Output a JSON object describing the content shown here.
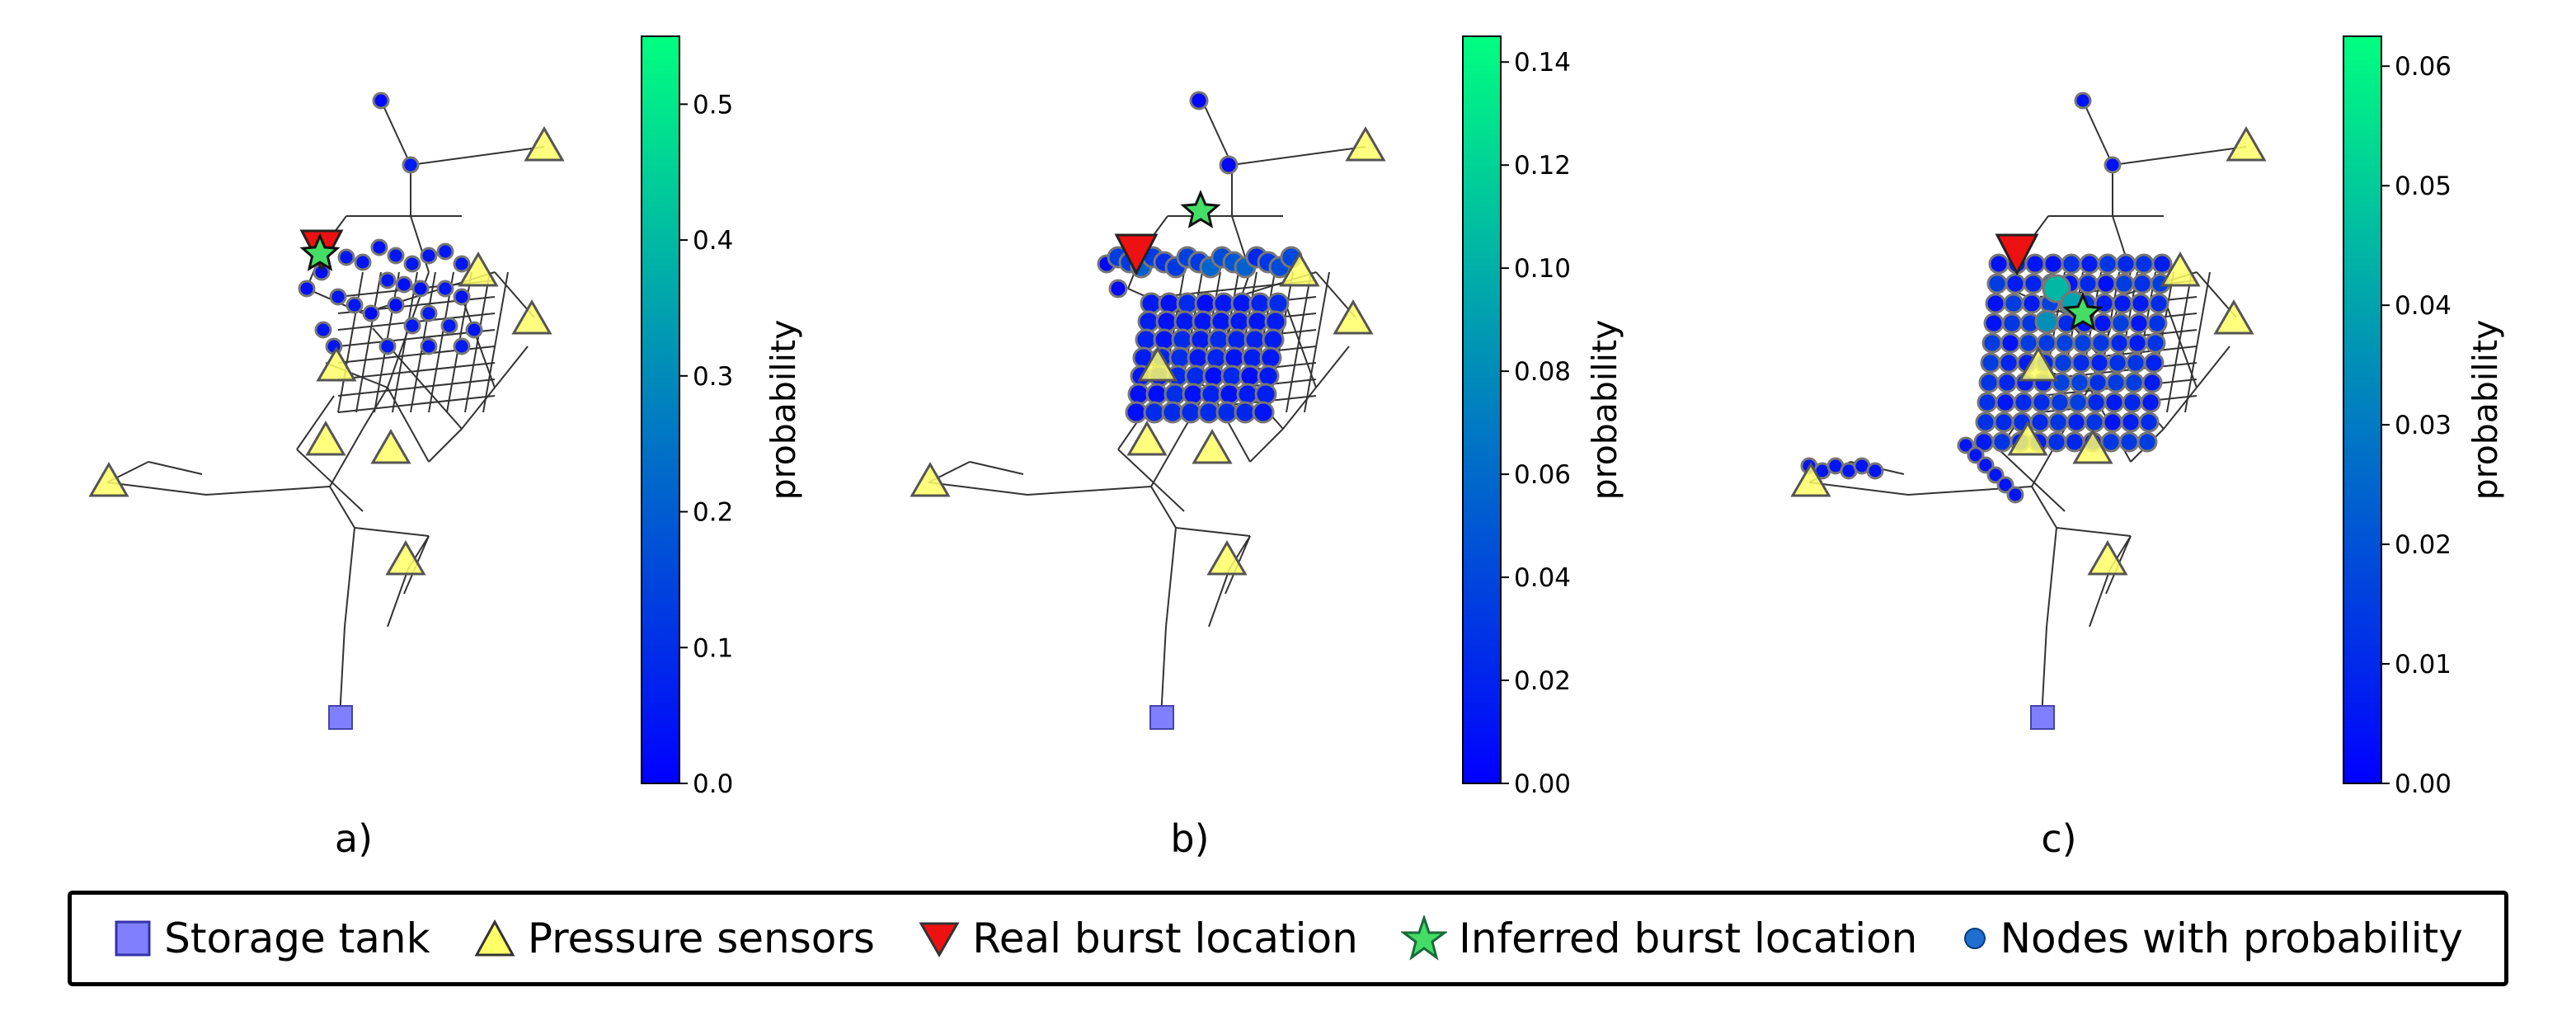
{
  "panels": [
    {
      "id": "a",
      "caption": "a)",
      "colorbar": {
        "label": "probability",
        "min": 0.0,
        "max": 0.55,
        "ticks": [
          "0.0",
          "0.1",
          "0.2",
          "0.3",
          "0.4",
          "0.5"
        ],
        "tick_values": [
          0.0,
          0.1,
          0.2,
          0.3,
          0.4,
          0.5
        ]
      },
      "real_burst": "north-west cluster",
      "inferred_burst": "co-located with real burst",
      "probability_spread": "compact"
    },
    {
      "id": "b",
      "caption": "b)",
      "colorbar": {
        "label": "probability",
        "min": 0.0,
        "max": 0.145,
        "ticks": [
          "0.00",
          "0.02",
          "0.04",
          "0.06",
          "0.08",
          "0.10",
          "0.12",
          "0.14"
        ],
        "tick_values": [
          0.0,
          0.02,
          0.04,
          0.06,
          0.08,
          0.1,
          0.12,
          0.14
        ]
      },
      "real_burst": "north-west cluster",
      "inferred_burst": "slightly north-east of real burst",
      "probability_spread": "medium"
    },
    {
      "id": "c",
      "caption": "c)",
      "colorbar": {
        "label": "probability",
        "min": 0.0,
        "max": 0.0625,
        "ticks": [
          "0.00",
          "0.01",
          "0.02",
          "0.03",
          "0.04",
          "0.05",
          "0.06"
        ],
        "tick_values": [
          0.0,
          0.01,
          0.02,
          0.03,
          0.04,
          0.05,
          0.06
        ]
      },
      "real_burst": "north-west cluster",
      "inferred_burst": "central network",
      "probability_spread": "wide"
    }
  ],
  "legend": {
    "items": [
      {
        "icon": "storage-tank-icon",
        "label": "Storage tank",
        "color": "#8080ff"
      },
      {
        "icon": "pressure-sensor-icon",
        "label": "Pressure sensors",
        "color": "#ffff66"
      },
      {
        "icon": "real-burst-icon",
        "label": "Real burst location",
        "color": "#ee1111"
      },
      {
        "icon": "inferred-burst-icon",
        "label": "Inferred burst location",
        "color": "#44dd66"
      },
      {
        "icon": "node-probability-icon",
        "label": "Nodes with probability",
        "color": "#1f6fd0"
      }
    ]
  },
  "colors": {
    "colormap_low": "#0000ff",
    "colormap_high": "#00ff80",
    "pipe": "#333333",
    "node_edge": "#777777"
  }
}
